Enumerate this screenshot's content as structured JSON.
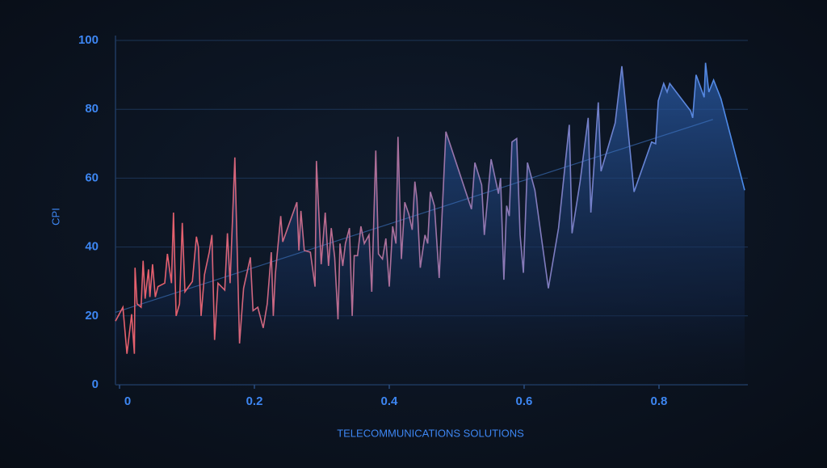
{
  "chart_data": {
    "type": "line",
    "x_label": "TELECOMMUNICATIONS SOLUTIONS",
    "y_label": "CPI",
    "series": [
      {
        "colors": [
          "#e5606d",
          "#4a8cec"
        ],
        "x": [
          -0.006,
          0.005,
          0.011,
          0.018,
          0.022,
          0.023,
          0.026,
          0.032,
          0.035,
          0.038,
          0.043,
          0.045,
          0.049,
          0.053,
          0.057,
          0.067,
          0.071,
          0.077,
          0.08,
          0.084,
          0.089,
          0.093,
          0.097,
          0.108,
          0.114,
          0.117,
          0.121,
          0.126,
          0.133,
          0.137,
          0.141,
          0.146,
          0.156,
          0.16,
          0.164,
          0.171,
          0.178,
          0.184,
          0.194,
          0.198,
          0.205,
          0.213,
          0.219,
          0.225,
          0.228,
          0.231,
          0.239,
          0.242,
          0.263,
          0.266,
          0.269,
          0.274,
          0.283,
          0.29,
          0.292,
          0.299,
          0.305,
          0.31,
          0.314,
          0.319,
          0.324,
          0.327,
          0.331,
          0.335,
          0.341,
          0.345,
          0.348,
          0.353,
          0.358,
          0.363,
          0.37,
          0.374,
          0.38,
          0.384,
          0.39,
          0.395,
          0.4,
          0.405,
          0.41,
          0.413,
          0.418,
          0.423,
          0.429,
          0.434,
          0.438,
          0.441,
          0.446,
          0.453,
          0.457,
          0.461,
          0.467,
          0.474,
          0.484,
          0.522,
          0.527,
          0.537,
          0.541,
          0.551,
          0.562,
          0.565,
          0.57,
          0.574,
          0.578,
          0.582,
          0.589,
          0.594,
          0.599,
          0.605,
          0.616,
          0.636,
          0.651,
          0.667,
          0.671,
          0.683,
          0.695,
          0.699,
          0.71,
          0.714,
          0.735,
          0.745,
          0.763,
          0.789,
          0.795,
          0.799,
          0.807,
          0.812,
          0.816,
          0.847,
          0.85,
          0.855,
          0.867,
          0.869,
          0.874,
          0.881,
          0.892,
          0.927
        ],
        "values": [
          18.5,
          22.5,
          9,
          20.5,
          9,
          34,
          23.5,
          22.5,
          36,
          25,
          33.5,
          25.5,
          35,
          25.5,
          28.5,
          29.5,
          38,
          29.5,
          50,
          20,
          23.5,
          47,
          27,
          30,
          43,
          40,
          20,
          32,
          38.5,
          43.5,
          13,
          29.5,
          27.5,
          44,
          29.5,
          66,
          12,
          28,
          37,
          21.5,
          22.5,
          16.5,
          23.5,
          38.5,
          20,
          32,
          49,
          41.5,
          53,
          39,
          50.5,
          39,
          38.5,
          28.5,
          65,
          35,
          50,
          34.5,
          45.5,
          37,
          19,
          41,
          34.5,
          41,
          45.5,
          20,
          37.5,
          37.5,
          46,
          41,
          43.5,
          27,
          68,
          38,
          36.5,
          42.5,
          28.5,
          46,
          41,
          72,
          36.5,
          53,
          49.5,
          45,
          59,
          54,
          34,
          43.5,
          41,
          56,
          52,
          31,
          73.5,
          51,
          64.5,
          58,
          43.5,
          65.5,
          55.5,
          60,
          30.5,
          52,
          49,
          70.5,
          71.5,
          43.5,
          32.5,
          64.5,
          56.5,
          28,
          45.5,
          75.5,
          44,
          59,
          77.5,
          50,
          82,
          62,
          76,
          92.5,
          56,
          70.5,
          70,
          82.5,
          87.5,
          85,
          87.5,
          79.5,
          77.5,
          90,
          83.5,
          93.5,
          85,
          88.5,
          83,
          56.5
        ]
      }
    ],
    "xlim": [
      -0.006,
      0.927
    ],
    "xticks": [
      0,
      0.2,
      0.4,
      0.6,
      0.8
    ],
    "ylim": [
      0,
      100
    ],
    "yticks": [
      0,
      20,
      40,
      60,
      80,
      100
    ],
    "grid": true,
    "trend_line": true
  }
}
